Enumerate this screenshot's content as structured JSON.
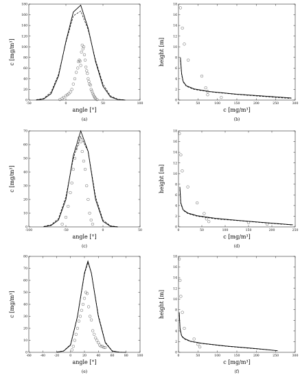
{
  "chart_data": [
    {
      "type": "line",
      "panel_label": "(a)",
      "xlabel": "angle [°]",
      "ylabel": "c [mg/m³]",
      "xlim": [
        -50,
        100
      ],
      "ylim": [
        0,
        180
      ],
      "xticks": [
        -50,
        0,
        50,
        100
      ],
      "yticks": [
        0,
        20,
        40,
        60,
        80,
        100,
        120,
        140,
        160,
        180
      ],
      "series": [
        {
          "style": "solid",
          "x": [
            -40,
            -30,
            -20,
            -10,
            0,
            10,
            20,
            30,
            40,
            50,
            60,
            70,
            80
          ],
          "y": [
            0.3,
            2,
            12,
            45,
            110,
            165,
            178,
            135,
            72,
            26,
            6,
            1,
            0.1
          ]
        },
        {
          "style": "dashed",
          "x": [
            -40,
            -30,
            -20,
            -10,
            0,
            10,
            20,
            30,
            40,
            50,
            60,
            70,
            80
          ],
          "y": [
            0.6,
            3,
            15,
            48,
            108,
            158,
            167,
            132,
            75,
            30,
            8,
            1.5,
            0.2
          ]
        },
        {
          "style": "markers",
          "x": [
            -8,
            -5,
            -3,
            0,
            2,
            4,
            6,
            8,
            10,
            12,
            14,
            16,
            17,
            18,
            19,
            20,
            21,
            22,
            23,
            24,
            25,
            26,
            27,
            28,
            29,
            30,
            31,
            32,
            33,
            34,
            35,
            36,
            37,
            38,
            39,
            40,
            42
          ],
          "y": [
            1,
            3,
            5,
            8,
            10,
            12,
            15,
            20,
            30,
            40,
            52,
            60,
            72,
            75,
            73,
            65,
            90,
            103,
            96,
            100,
            85,
            75,
            62,
            55,
            50,
            40,
            35,
            30,
            28,
            20,
            17,
            13,
            10,
            7,
            5,
            3,
            1
          ]
        }
      ]
    },
    {
      "type": "line",
      "panel_label": "(b)",
      "xlabel": "c [mg/m³]",
      "ylabel": "height [m]",
      "xlim": [
        0,
        300
      ],
      "ylim": [
        0,
        18
      ],
      "xticks": [
        0,
        50,
        100,
        150,
        200,
        250,
        300
      ],
      "yticks": [
        0,
        2,
        4,
        6,
        8,
        10,
        12,
        14,
        16,
        18
      ],
      "series": [
        {
          "style": "solid",
          "x": [
            5,
            8,
            12,
            20,
            40,
            80,
            150,
            250,
            290
          ],
          "y": [
            8,
            5,
            3.5,
            2.7,
            2.1,
            1.6,
            1.1,
            0.6,
            0.4
          ]
        },
        {
          "style": "dashed",
          "x": [
            5,
            8,
            12,
            20,
            40,
            80,
            150,
            250,
            290
          ],
          "y": [
            7.5,
            4.8,
            3.4,
            2.6,
            2,
            1.55,
            1.05,
            0.5,
            0.3
          ]
        },
        {
          "style": "markers",
          "x": [
            5,
            10,
            15,
            25,
            60,
            70,
            75,
            75,
            110
          ],
          "y": [
            17.3,
            13.5,
            10.5,
            7.5,
            4.5,
            2.3,
            1.6,
            1.0,
            0.5
          ]
        }
      ]
    },
    {
      "type": "line",
      "panel_label": "(c)",
      "xlabel": "angle [°]",
      "ylabel": "c [mg/m³]",
      "xlim": [
        -100,
        50
      ],
      "ylim": [
        0,
        70
      ],
      "xticks": [
        -100,
        -50,
        0,
        50
      ],
      "yticks": [
        0,
        10,
        20,
        30,
        40,
        50,
        60,
        70
      ],
      "series": [
        {
          "style": "solid",
          "x": [
            -80,
            -70,
            -60,
            -50,
            -40,
            -30,
            -20,
            -10,
            0,
            10,
            20
          ],
          "y": [
            0.1,
            1,
            5,
            20,
            52,
            70,
            55,
            20,
            4,
            0.5,
            0
          ]
        },
        {
          "style": "dashed",
          "x": [
            -80,
            -70,
            -60,
            -50,
            -40,
            -30,
            -20,
            -10,
            0,
            10,
            20
          ],
          "y": [
            0.3,
            1.5,
            6,
            22,
            50,
            66,
            55,
            22,
            5,
            0.8,
            0.1
          ]
        },
        {
          "style": "markers",
          "x": [
            -55,
            -50,
            -47,
            -44,
            -42,
            -40,
            -38,
            -36,
            -34,
            -32,
            -30,
            -28,
            -26,
            -24,
            -22,
            -20,
            -18,
            -16,
            -14
          ],
          "y": [
            2,
            7,
            15,
            25,
            32,
            42,
            50,
            57,
            60,
            65,
            62,
            55,
            48,
            42,
            30,
            20,
            10,
            5,
            2
          ]
        }
      ]
    },
    {
      "type": "line",
      "panel_label": "(d)",
      "xlabel": "c [mg/m³]",
      "ylabel": "height [m]",
      "xlim": [
        0,
        250
      ],
      "ylim": [
        0,
        18
      ],
      "xticks": [
        0,
        50,
        100,
        150,
        200,
        250
      ],
      "yticks": [
        0,
        2,
        4,
        6,
        8,
        10,
        12,
        14,
        16,
        18
      ],
      "series": [
        {
          "style": "solid",
          "x": [
            3,
            5,
            10,
            20,
            40,
            80,
            130,
            200,
            245
          ],
          "y": [
            7.5,
            4.5,
            3.2,
            2.6,
            2.1,
            1.6,
            1.2,
            0.7,
            0.4
          ]
        },
        {
          "style": "dashed",
          "x": [
            3,
            5,
            10,
            20,
            40,
            80,
            130,
            200,
            245
          ],
          "y": [
            7,
            4.3,
            3.1,
            2.5,
            2,
            1.5,
            1.15,
            0.65,
            0.35
          ]
        },
        {
          "style": "markers",
          "x": [
            2,
            5,
            8,
            20,
            40,
            55,
            60,
            65,
            150,
            190
          ],
          "y": [
            17.5,
            13.5,
            10.5,
            7.5,
            4.5,
            2.5,
            1.5,
            1.0,
            0.8,
            0.5
          ]
        }
      ]
    },
    {
      "type": "line",
      "panel_label": "(e)",
      "xlabel": "angle [°]",
      "ylabel": "c [mg/m³]",
      "xlim": [
        -60,
        100
      ],
      "ylim": [
        0,
        80
      ],
      "xticks": [
        -60,
        -40,
        -20,
        0,
        20,
        40,
        60,
        80,
        100
      ],
      "yticks": [
        0,
        10,
        20,
        30,
        40,
        50,
        60,
        70,
        80
      ],
      "series": [
        {
          "style": "solid",
          "x": [
            -20,
            -10,
            0,
            10,
            20,
            25,
            30,
            40,
            50,
            60,
            70,
            80
          ],
          "y": [
            0.1,
            1,
            6,
            30,
            66,
            76,
            66,
            30,
            8,
            1,
            0.1,
            0
          ]
        },
        {
          "style": "dashed",
          "x": [
            -20,
            -10,
            0,
            10,
            20,
            25,
            30,
            40,
            50,
            60,
            70,
            80
          ],
          "y": [
            0.2,
            1.2,
            6.5,
            30,
            65,
            75,
            66,
            31,
            8.5,
            1.2,
            0.2,
            0
          ]
        },
        {
          "style": "markers",
          "x": [
            2,
            4,
            6,
            8,
            10,
            12,
            14,
            16,
            18,
            20,
            22,
            24,
            26,
            28,
            30,
            32,
            34,
            36,
            38,
            40,
            42,
            44,
            46,
            48,
            50
          ],
          "y": [
            2,
            5,
            10,
            15,
            20,
            26,
            30,
            35,
            40,
            45,
            50,
            49,
            38,
            30,
            27,
            18,
            15,
            12,
            10,
            8,
            6,
            5,
            5,
            4,
            4
          ]
        }
      ]
    },
    {
      "type": "line",
      "panel_label": "(f)",
      "xlabel": "c [mg/m³]",
      "ylabel": "height [m]",
      "xlim": [
        0,
        300
      ],
      "ylim": [
        0,
        18
      ],
      "xticks": [
        0,
        50,
        100,
        150,
        200,
        250,
        300
      ],
      "yticks": [
        0,
        2,
        4,
        6,
        8,
        10,
        12,
        14,
        16,
        18
      ],
      "series": [
        {
          "style": "solid",
          "x": [
            2,
            4,
            8,
            15,
            30,
            60,
            120,
            200,
            255
          ],
          "y": [
            7.5,
            4.5,
            3.1,
            2.6,
            2.1,
            1.7,
            1.2,
            0.7,
            0.3
          ]
        },
        {
          "style": "dashed",
          "x": [
            2,
            4,
            8,
            15,
            30,
            60,
            120,
            200,
            255
          ],
          "y": [
            7,
            4.3,
            3,
            2.5,
            2.05,
            1.65,
            1.15,
            0.65,
            0.3
          ]
        },
        {
          "style": "markers",
          "x": [
            2,
            4,
            6,
            10,
            15,
            40,
            50,
            55
          ],
          "y": [
            17.5,
            13.5,
            10.5,
            7.5,
            4.5,
            2.5,
            1.5,
            1.0
          ]
        }
      ]
    }
  ]
}
